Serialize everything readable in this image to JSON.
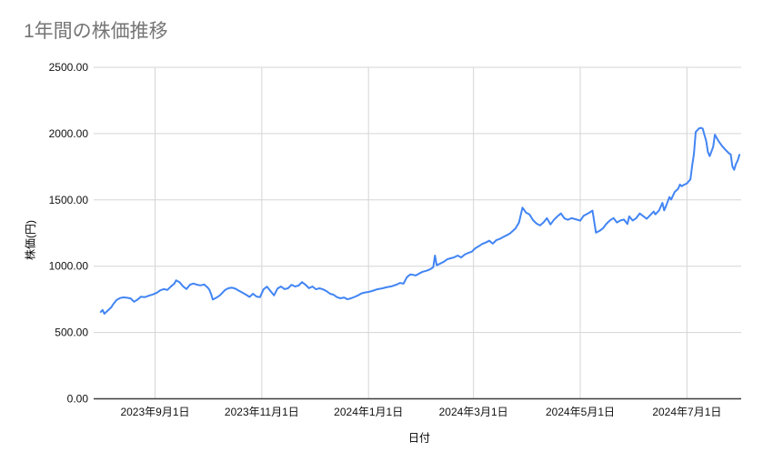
{
  "colors": {
    "line": "#4285f4",
    "grid": "#d5d5d5",
    "baseline": "#3c3c3c",
    "tick_label": "#111111",
    "title": "#757575",
    "background": "#ffffff"
  },
  "chart_data": {
    "type": "line",
    "title": "1年間の株価推移",
    "xlabel": "日付",
    "ylabel": "株価(円)",
    "ylim": [
      0,
      2500
    ],
    "grid": true,
    "legend": "none",
    "y_ticks": [
      0,
      500,
      1000,
      1500,
      2000,
      2500
    ],
    "y_tick_labels": [
      "0.00",
      "500.00",
      "1000.00",
      "1500.00",
      "2000.00",
      "2500.00"
    ],
    "x_ticks": [
      {
        "label": "2023年9月1日",
        "date": "2023-09-01"
      },
      {
        "label": "2023年11月1日",
        "date": "2023-11-01"
      },
      {
        "label": "2024年1月1日",
        "date": "2024-01-01"
      },
      {
        "label": "2024年3月1日",
        "date": "2024-03-01"
      },
      {
        "label": "2024年5月1日",
        "date": "2024-05-01"
      },
      {
        "label": "2024年7月1日",
        "date": "2024-07-01"
      }
    ],
    "series": [
      {
        "color": "#4285f4",
        "points": [
          [
            "2023-08-01",
            655
          ],
          [
            "2023-08-02",
            670
          ],
          [
            "2023-08-03",
            641
          ],
          [
            "2023-08-05",
            665
          ],
          [
            "2023-08-07",
            690
          ],
          [
            "2023-08-08",
            712
          ],
          [
            "2023-08-10",
            745
          ],
          [
            "2023-08-12",
            760
          ],
          [
            "2023-08-14",
            765
          ],
          [
            "2023-08-16",
            762
          ],
          [
            "2023-08-18",
            757
          ],
          [
            "2023-08-20",
            732
          ],
          [
            "2023-08-22",
            748
          ],
          [
            "2023-08-24",
            770
          ],
          [
            "2023-08-26",
            766
          ],
          [
            "2023-08-29",
            780
          ],
          [
            "2023-08-31",
            788
          ],
          [
            "2023-09-02",
            800
          ],
          [
            "2023-09-04",
            818
          ],
          [
            "2023-09-06",
            827
          ],
          [
            "2023-09-08",
            821
          ],
          [
            "2023-09-10",
            846
          ],
          [
            "2023-09-12",
            868
          ],
          [
            "2023-09-13",
            893
          ],
          [
            "2023-09-15",
            879
          ],
          [
            "2023-09-17",
            848
          ],
          [
            "2023-09-19",
            828
          ],
          [
            "2023-09-21",
            861
          ],
          [
            "2023-09-23",
            869
          ],
          [
            "2023-09-25",
            860
          ],
          [
            "2023-09-27",
            855
          ],
          [
            "2023-09-29",
            862
          ],
          [
            "2023-10-01",
            840
          ],
          [
            "2023-10-02",
            824
          ],
          [
            "2023-10-03",
            790
          ],
          [
            "2023-10-04",
            748
          ],
          [
            "2023-10-06",
            762
          ],
          [
            "2023-10-08",
            780
          ],
          [
            "2023-10-09",
            793
          ],
          [
            "2023-10-11",
            820
          ],
          [
            "2023-10-13",
            834
          ],
          [
            "2023-10-15",
            838
          ],
          [
            "2023-10-17",
            830
          ],
          [
            "2023-10-19",
            815
          ],
          [
            "2023-10-21",
            800
          ],
          [
            "2023-10-23",
            785
          ],
          [
            "2023-10-25",
            768
          ],
          [
            "2023-10-27",
            792
          ],
          [
            "2023-10-29",
            771
          ],
          [
            "2023-10-31",
            767
          ],
          [
            "2023-11-02",
            826
          ],
          [
            "2023-11-04",
            846
          ],
          [
            "2023-11-06",
            812
          ],
          [
            "2023-11-08",
            780
          ],
          [
            "2023-11-10",
            832
          ],
          [
            "2023-11-12",
            847
          ],
          [
            "2023-11-14",
            827
          ],
          [
            "2023-11-16",
            833
          ],
          [
            "2023-11-18",
            860
          ],
          [
            "2023-11-20",
            847
          ],
          [
            "2023-11-22",
            854
          ],
          [
            "2023-11-24",
            880
          ],
          [
            "2023-11-26",
            860
          ],
          [
            "2023-11-28",
            834
          ],
          [
            "2023-11-30",
            847
          ],
          [
            "2023-12-02",
            826
          ],
          [
            "2023-12-04",
            833
          ],
          [
            "2023-12-06",
            825
          ],
          [
            "2023-12-08",
            812
          ],
          [
            "2023-12-10",
            792
          ],
          [
            "2023-12-12",
            785
          ],
          [
            "2023-12-14",
            766
          ],
          [
            "2023-12-16",
            758
          ],
          [
            "2023-12-18",
            764
          ],
          [
            "2023-12-20",
            750
          ],
          [
            "2023-12-22",
            758
          ],
          [
            "2023-12-24",
            768
          ],
          [
            "2023-12-26",
            780
          ],
          [
            "2023-12-28",
            795
          ],
          [
            "2023-12-30",
            802
          ],
          [
            "2024-01-01",
            806
          ],
          [
            "2024-01-03",
            813
          ],
          [
            "2024-01-06",
            826
          ],
          [
            "2024-01-09",
            833
          ],
          [
            "2024-01-11",
            840
          ],
          [
            "2024-01-14",
            848
          ],
          [
            "2024-01-17",
            861
          ],
          [
            "2024-01-19",
            874
          ],
          [
            "2024-01-21",
            868
          ],
          [
            "2024-01-23",
            918
          ],
          [
            "2024-01-25",
            938
          ],
          [
            "2024-01-28",
            930
          ],
          [
            "2024-01-30",
            945
          ],
          [
            "2024-02-01",
            958
          ],
          [
            "2024-02-03",
            965
          ],
          [
            "2024-02-05",
            975
          ],
          [
            "2024-02-07",
            992
          ],
          [
            "2024-02-08",
            1080
          ],
          [
            "2024-02-09",
            1007
          ],
          [
            "2024-02-11",
            1020
          ],
          [
            "2024-02-13",
            1033
          ],
          [
            "2024-02-15",
            1052
          ],
          [
            "2024-02-17",
            1060
          ],
          [
            "2024-02-19",
            1067
          ],
          [
            "2024-02-21",
            1080
          ],
          [
            "2024-02-23",
            1066
          ],
          [
            "2024-02-25",
            1088
          ],
          [
            "2024-02-27",
            1100
          ],
          [
            "2024-02-29",
            1109
          ],
          [
            "2024-03-02",
            1135
          ],
          [
            "2024-03-04",
            1150
          ],
          [
            "2024-03-06",
            1168
          ],
          [
            "2024-03-08",
            1178
          ],
          [
            "2024-03-10",
            1192
          ],
          [
            "2024-03-12",
            1170
          ],
          [
            "2024-03-14",
            1196
          ],
          [
            "2024-03-16",
            1206
          ],
          [
            "2024-03-18",
            1220
          ],
          [
            "2024-03-20",
            1233
          ],
          [
            "2024-03-22",
            1248
          ],
          [
            "2024-03-25",
            1284
          ],
          [
            "2024-03-27",
            1330
          ],
          [
            "2024-03-29",
            1442
          ],
          [
            "2024-03-31",
            1405
          ],
          [
            "2024-04-02",
            1390
          ],
          [
            "2024-04-04",
            1348
          ],
          [
            "2024-04-06",
            1322
          ],
          [
            "2024-04-08",
            1307
          ],
          [
            "2024-04-10",
            1330
          ],
          [
            "2024-04-12",
            1362
          ],
          [
            "2024-04-14",
            1315
          ],
          [
            "2024-04-16",
            1350
          ],
          [
            "2024-04-18",
            1376
          ],
          [
            "2024-04-20",
            1398
          ],
          [
            "2024-04-22",
            1360
          ],
          [
            "2024-04-24",
            1350
          ],
          [
            "2024-04-26",
            1362
          ],
          [
            "2024-04-28",
            1355
          ],
          [
            "2024-04-30",
            1348
          ],
          [
            "2024-05-01",
            1343
          ],
          [
            "2024-05-03",
            1381
          ],
          [
            "2024-05-06",
            1402
          ],
          [
            "2024-05-08",
            1419
          ],
          [
            "2024-05-10",
            1253
          ],
          [
            "2024-05-12",
            1266
          ],
          [
            "2024-05-14",
            1285
          ],
          [
            "2024-05-16",
            1320
          ],
          [
            "2024-05-18",
            1346
          ],
          [
            "2024-05-20",
            1363
          ],
          [
            "2024-05-22",
            1330
          ],
          [
            "2024-05-24",
            1345
          ],
          [
            "2024-05-26",
            1352
          ],
          [
            "2024-05-28",
            1318
          ],
          [
            "2024-05-29",
            1376
          ],
          [
            "2024-05-31",
            1344
          ],
          [
            "2024-06-02",
            1362
          ],
          [
            "2024-06-04",
            1398
          ],
          [
            "2024-06-06",
            1377
          ],
          [
            "2024-06-08",
            1357
          ],
          [
            "2024-06-10",
            1385
          ],
          [
            "2024-06-12",
            1412
          ],
          [
            "2024-06-13",
            1391
          ],
          [
            "2024-06-15",
            1419
          ],
          [
            "2024-06-17",
            1478
          ],
          [
            "2024-06-18",
            1421
          ],
          [
            "2024-06-19",
            1453
          ],
          [
            "2024-06-21",
            1521
          ],
          [
            "2024-06-22",
            1503
          ],
          [
            "2024-06-24",
            1560
          ],
          [
            "2024-06-26",
            1584
          ],
          [
            "2024-06-27",
            1616
          ],
          [
            "2024-06-28",
            1603
          ],
          [
            "2024-06-29",
            1612
          ],
          [
            "2024-06-30",
            1618
          ],
          [
            "2024-07-01",
            1625
          ],
          [
            "2024-07-02",
            1640
          ],
          [
            "2024-07-03",
            1655
          ],
          [
            "2024-07-04",
            1758
          ],
          [
            "2024-07-05",
            1850
          ],
          [
            "2024-07-06",
            2012
          ],
          [
            "2024-07-08",
            2040
          ],
          [
            "2024-07-09",
            2043
          ],
          [
            "2024-07-10",
            2038
          ],
          [
            "2024-07-11",
            1990
          ],
          [
            "2024-07-12",
            1946
          ],
          [
            "2024-07-13",
            1862
          ],
          [
            "2024-07-14",
            1830
          ],
          [
            "2024-07-16",
            1900
          ],
          [
            "2024-07-17",
            1992
          ],
          [
            "2024-07-19",
            1945
          ],
          [
            "2024-07-21",
            1908
          ],
          [
            "2024-07-23",
            1878
          ],
          [
            "2024-07-25",
            1852
          ],
          [
            "2024-07-26",
            1843
          ],
          [
            "2024-07-27",
            1752
          ],
          [
            "2024-07-28",
            1727
          ],
          [
            "2024-07-29",
            1770
          ],
          [
            "2024-07-30",
            1798
          ],
          [
            "2024-07-31",
            1840
          ]
        ]
      }
    ]
  }
}
